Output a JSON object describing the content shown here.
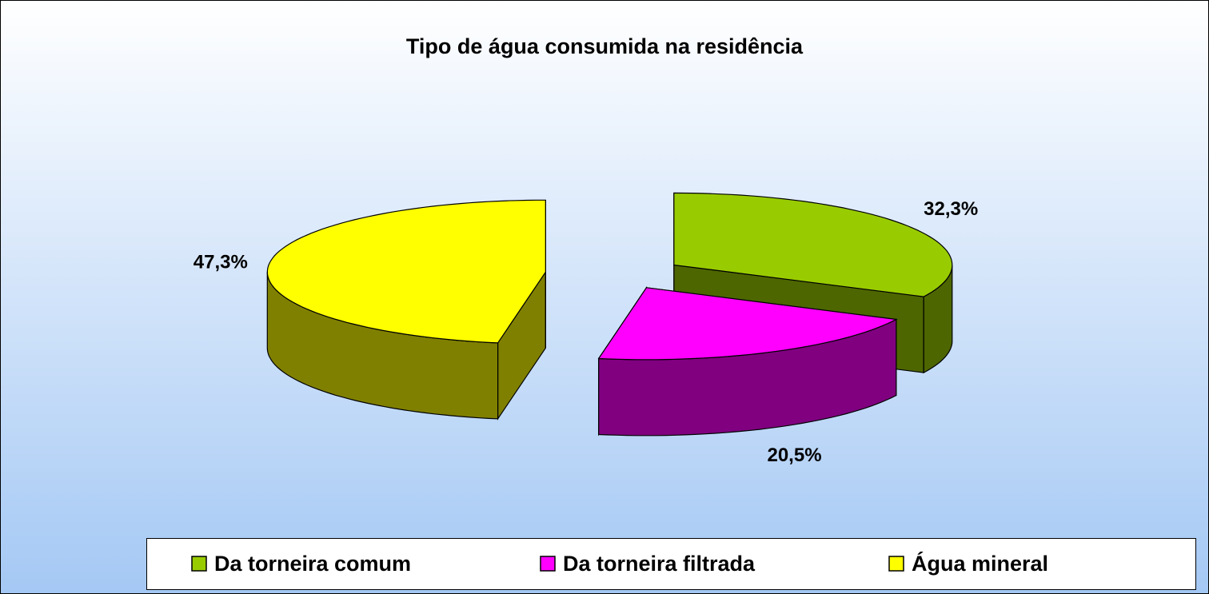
{
  "chart_data": {
    "type": "pie3d",
    "title": "Tipo de água consumida na residência",
    "categories": [
      "Da torneira comum",
      "Da torneira filtrada",
      "Água mineral"
    ],
    "values": [
      32.3,
      20.5,
      47.3
    ],
    "value_labels": [
      "32,3%",
      "20,5%",
      "47,3%"
    ],
    "colors": [
      "#99cc00",
      "#ff00ff",
      "#ffff00"
    ],
    "side_colors": [
      "#4d6600",
      "#800080",
      "#808000"
    ]
  }
}
